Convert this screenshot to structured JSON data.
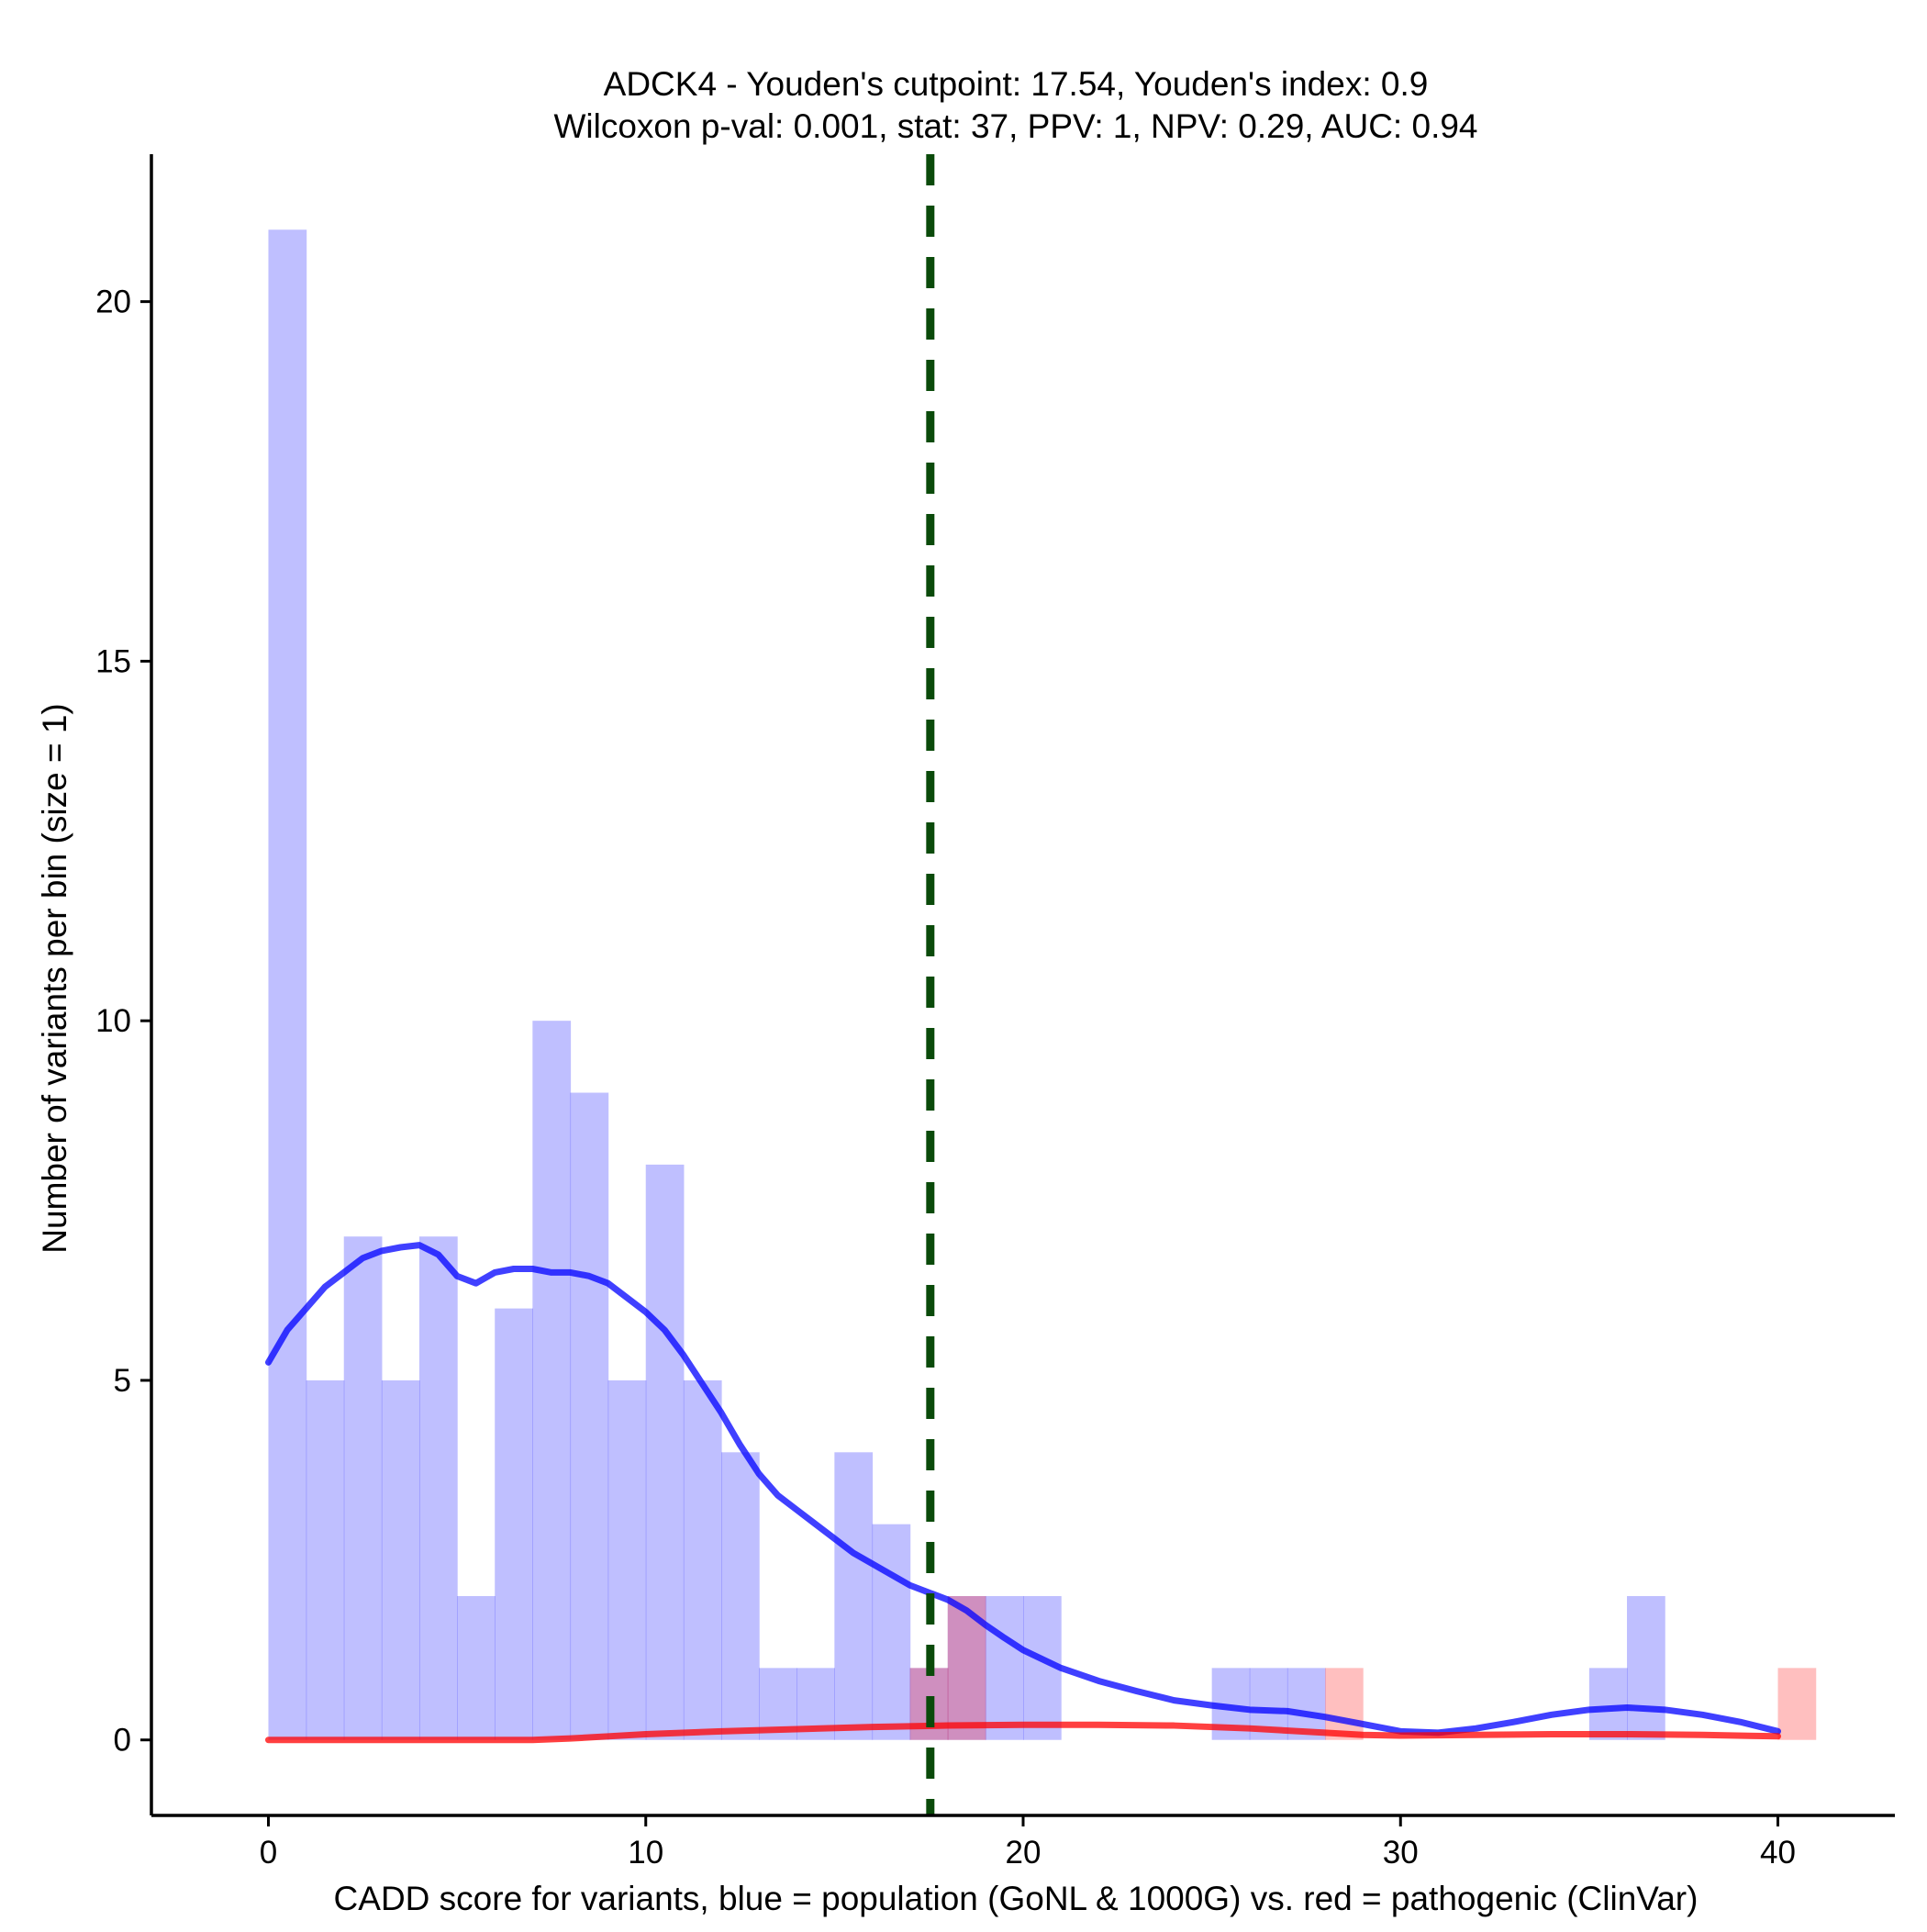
{
  "chart_data": {
    "type": "bar",
    "title_line1": "ADCK4 - Youden's cutpoint: 17.54, Youden's index: 0.9",
    "title_line2": "Wilcoxon p-val: 0.001, stat: 37, PPV: 1, NPV: 0.29, AUC: 0.94",
    "xlabel": "CADD score for variants, blue = population (GoNL & 1000G) vs. red = pathogenic (ClinVar)",
    "ylabel": "Number of variants per bin (size = 1)",
    "xlim": [
      -3.1,
      43.1
    ],
    "ylim": [
      -1.05,
      22.05
    ],
    "x_ticks": [
      0,
      10,
      20,
      30,
      40
    ],
    "y_ticks": [
      0,
      5,
      10,
      15,
      20
    ],
    "bin_width": 1,
    "cutpoint": 17.54,
    "grid": false,
    "series": [
      {
        "name": "population (GoNL & 1000G)",
        "color": "#0000ff",
        "bin_starts": [
          0,
          1,
          2,
          3,
          4,
          5,
          6,
          7,
          8,
          9,
          10,
          11,
          12,
          13,
          14,
          15,
          16,
          17,
          18,
          19,
          20,
          21,
          22,
          23,
          24,
          25,
          26,
          27,
          28,
          29,
          30,
          31,
          32,
          33,
          34,
          35,
          36
        ],
        "counts": [
          21,
          5,
          7,
          5,
          7,
          2,
          6,
          10,
          9,
          5,
          8,
          5,
          4,
          1,
          1,
          4,
          3,
          1,
          2,
          2,
          2,
          0,
          0,
          0,
          0,
          1,
          1,
          1,
          0,
          0,
          0,
          0,
          0,
          0,
          0,
          1,
          2
        ]
      },
      {
        "name": "pathogenic (ClinVar)",
        "color": "#ff0000",
        "bin_starts": [
          17,
          18,
          28,
          40
        ],
        "counts": [
          1,
          2,
          1,
          1
        ]
      }
    ],
    "density_curves": [
      {
        "name": "population density",
        "color": "#0000ff",
        "x": [
          0,
          0.5,
          1,
          1.5,
          2,
          2.5,
          3,
          3.5,
          4,
          4.5,
          5,
          5.5,
          6,
          6.5,
          7,
          7.5,
          8,
          8.5,
          9,
          9.5,
          10,
          10.5,
          11,
          11.5,
          12,
          12.5,
          13,
          13.5,
          14,
          14.5,
          15,
          15.5,
          16,
          16.5,
          17,
          17.5,
          18,
          18.5,
          19,
          19.5,
          20,
          21,
          22,
          23,
          24,
          25,
          26,
          27,
          28,
          29,
          30,
          31,
          32,
          33,
          34,
          35,
          36,
          37,
          38,
          39,
          40
        ],
        "y": [
          5.25,
          5.7,
          6.0,
          6.3,
          6.5,
          6.7,
          6.8,
          6.85,
          6.88,
          6.75,
          6.45,
          6.35,
          6.5,
          6.55,
          6.55,
          6.5,
          6.5,
          6.45,
          6.35,
          6.15,
          5.95,
          5.7,
          5.35,
          4.95,
          4.55,
          4.1,
          3.7,
          3.4,
          3.2,
          3.0,
          2.8,
          2.6,
          2.45,
          2.3,
          2.15,
          2.05,
          1.95,
          1.8,
          1.6,
          1.42,
          1.25,
          1.0,
          0.82,
          0.68,
          0.55,
          0.48,
          0.42,
          0.4,
          0.32,
          0.22,
          0.12,
          0.1,
          0.16,
          0.25,
          0.35,
          0.42,
          0.45,
          0.42,
          0.35,
          0.25,
          0.12
        ]
      },
      {
        "name": "pathogenic density",
        "color": "#ff0000",
        "x": [
          0,
          3,
          6,
          7,
          8,
          9,
          10,
          12,
          14,
          16,
          18,
          20,
          22,
          24,
          26,
          28,
          29,
          30,
          32,
          34,
          36,
          38,
          40
        ],
        "y": [
          0,
          0,
          0,
          0,
          0.02,
          0.05,
          0.08,
          0.12,
          0.15,
          0.18,
          0.2,
          0.21,
          0.21,
          0.2,
          0.16,
          0.1,
          0.07,
          0.06,
          0.07,
          0.08,
          0.08,
          0.07,
          0.05
        ]
      }
    ]
  }
}
